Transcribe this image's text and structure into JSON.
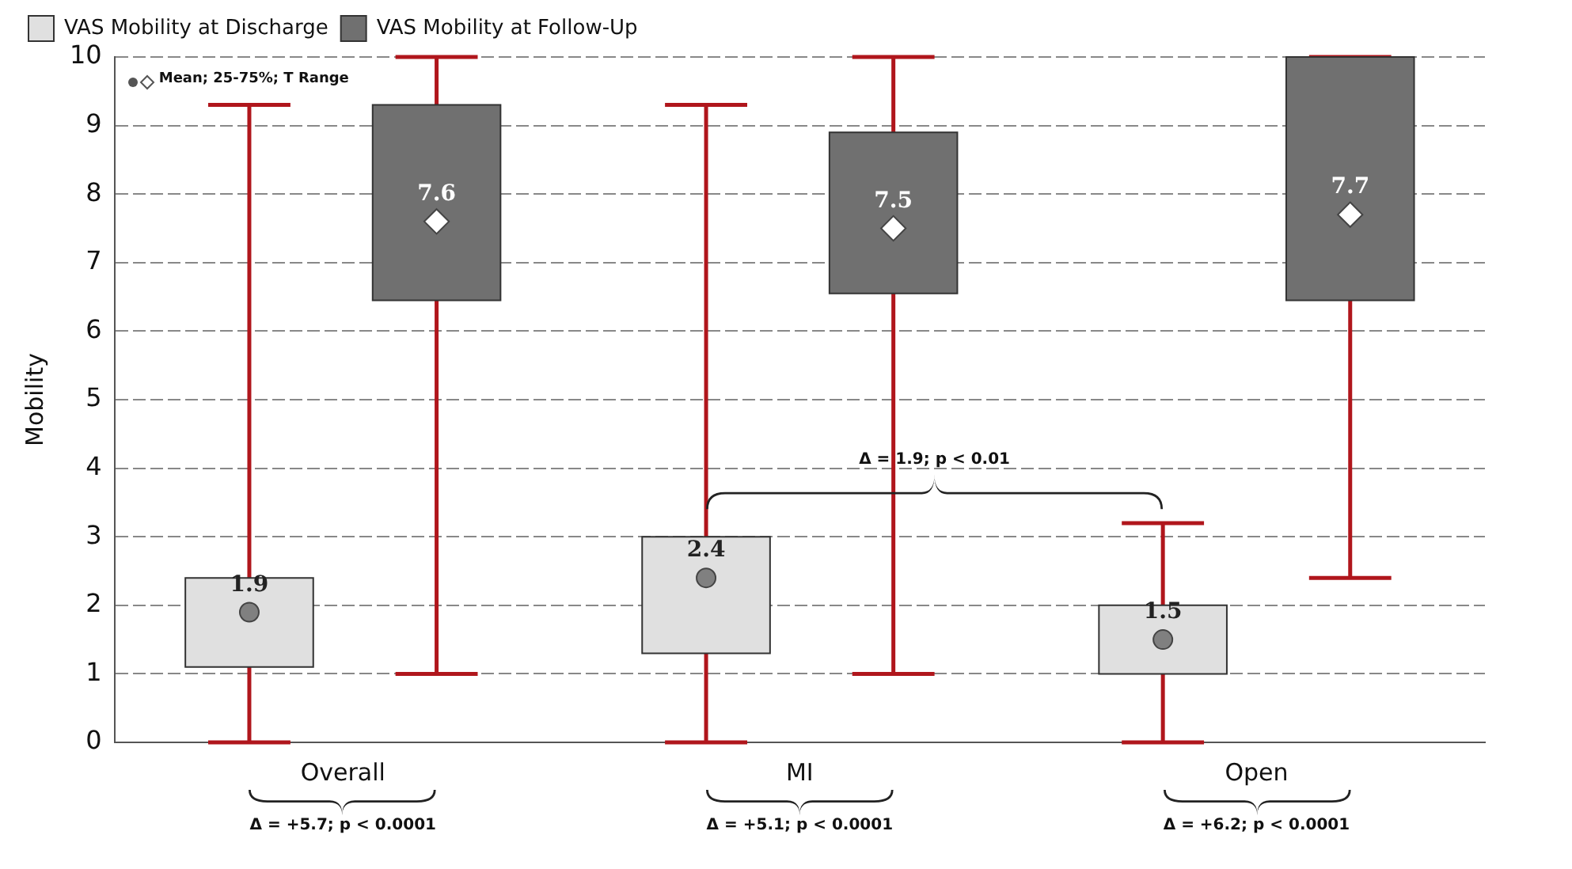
{
  "chart_data": {
    "type": "box",
    "ylabel": "Mobility",
    "categories": [
      "Overall",
      "MI",
      "Open"
    ],
    "series": [
      {
        "name": "VAS Mobility at Discharge",
        "color": "#e0e0e0",
        "marker": "circle",
        "value_labels": [
          "1.9",
          "2.4",
          "1.5"
        ],
        "boxes": [
          {
            "low": 0,
            "q1": 1.1,
            "q3": 2.4,
            "high": 9.3,
            "mean": 1.9
          },
          {
            "low": 0,
            "q1": 1.3,
            "q3": 3.0,
            "high": 9.3,
            "mean": 2.4
          },
          {
            "low": 0,
            "q1": 1.0,
            "q3": 2.0,
            "high": 3.2,
            "mean": 1.5
          }
        ]
      },
      {
        "name": "VAS Mobility at Follow-Up",
        "color": "#707070",
        "marker": "diamond",
        "value_labels": [
          "7.6",
          "7.5",
          "7.7"
        ],
        "boxes": [
          {
            "low": 1,
            "q1": 6.45,
            "q3": 9.3,
            "high": 10,
            "mean": 7.6
          },
          {
            "low": 1,
            "q1": 6.55,
            "q3": 8.9,
            "high": 10,
            "mean": 7.5
          },
          {
            "low": 2.4,
            "q1": 6.45,
            "q3": 10,
            "high": 10,
            "mean": 7.7
          }
        ]
      }
    ],
    "ylim": [
      0,
      10
    ],
    "yticks": [
      0,
      1,
      2,
      3,
      4,
      5,
      6,
      7,
      8,
      9,
      10
    ],
    "grid": "y",
    "legend": "top left",
    "annotations": [
      "Mean; 25-75%; T Range",
      "Δ = +5.7; p < 0.0001",
      "Δ = +5.1; p < 0.0001",
      "Δ = +6.2; p < 0.0001",
      "Δ = 1.9; p < 0.01"
    ]
  }
}
